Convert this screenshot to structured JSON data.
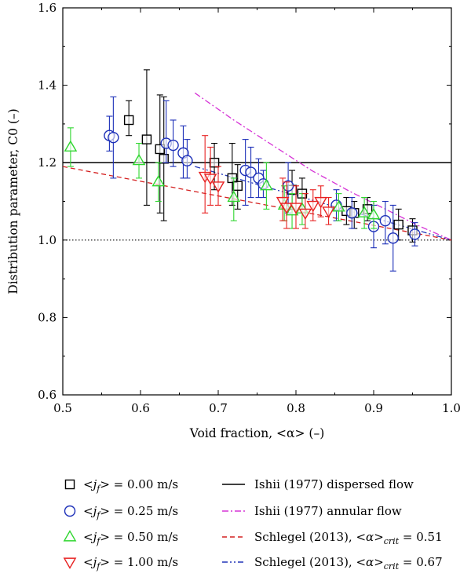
{
  "chart_data": {
    "type": "scatter",
    "xlabel": "Void fraction, <α> (–)",
    "ylabel": "Distribution parameter, C0 (–)",
    "xlim": [
      0.5,
      1.0
    ],
    "ylim": [
      0.6,
      1.6
    ],
    "xticks": [
      "0.5",
      "0.6",
      "0.7",
      "0.8",
      "0.9",
      "1.0"
    ],
    "yticks": [
      "0.6",
      "0.8",
      "1.0",
      "1.2",
      "1.4",
      "1.6"
    ],
    "grid": false,
    "legend_placement": "below",
    "series": [
      {
        "name": "<jf> = 0.00 m/s",
        "name_parts": [
          "<",
          "j",
          "f",
          "> = 0.00 m/s"
        ],
        "marker": "square",
        "color": "#000000",
        "points": [
          {
            "x": 0.585,
            "y": 1.31,
            "lo": 1.27,
            "hi": 1.36
          },
          {
            "x": 0.608,
            "y": 1.26,
            "lo": 1.09,
            "hi": 1.44
          },
          {
            "x": 0.625,
            "y": 1.235,
            "lo": 1.07,
            "hi": 1.375
          },
          {
            "x": 0.63,
            "y": 1.21,
            "lo": 1.05,
            "hi": 1.37
          },
          {
            "x": 0.695,
            "y": 1.2,
            "lo": 1.13,
            "hi": 1.25
          },
          {
            "x": 0.718,
            "y": 1.16,
            "lo": 1.09,
            "hi": 1.25
          },
          {
            "x": 0.725,
            "y": 1.14,
            "lo": 1.08,
            "hi": 1.195
          },
          {
            "x": 0.795,
            "y": 1.13,
            "lo": 1.08,
            "hi": 1.18
          },
          {
            "x": 0.808,
            "y": 1.12,
            "lo": 1.08,
            "hi": 1.16
          },
          {
            "x": 0.865,
            "y": 1.075,
            "lo": 1.04,
            "hi": 1.11
          },
          {
            "x": 0.875,
            "y": 1.07,
            "lo": 1.03,
            "hi": 1.1
          },
          {
            "x": 0.892,
            "y": 1.08,
            "lo": 1.05,
            "hi": 1.11
          },
          {
            "x": 0.932,
            "y": 1.04,
            "lo": 1.0,
            "hi": 1.08
          },
          {
            "x": 0.95,
            "y": 1.025,
            "lo": 0.995,
            "hi": 1.055
          }
        ]
      },
      {
        "name": "<jf> = 0.25 m/s",
        "name_parts": [
          "<",
          "j",
          "f",
          "> = 0.25 m/s"
        ],
        "marker": "circle",
        "color": "#1c2fb8",
        "points": [
          {
            "x": 0.56,
            "y": 1.27,
            "lo": 1.23,
            "hi": 1.32
          },
          {
            "x": 0.565,
            "y": 1.265,
            "lo": 1.16,
            "hi": 1.37
          },
          {
            "x": 0.633,
            "y": 1.25,
            "lo": 1.2,
            "hi": 1.36
          },
          {
            "x": 0.642,
            "y": 1.245,
            "lo": 1.19,
            "hi": 1.31
          },
          {
            "x": 0.655,
            "y": 1.225,
            "lo": 1.16,
            "hi": 1.295
          },
          {
            "x": 0.66,
            "y": 1.205,
            "lo": 1.16,
            "hi": 1.26
          },
          {
            "x": 0.735,
            "y": 1.18,
            "lo": 1.09,
            "hi": 1.26
          },
          {
            "x": 0.742,
            "y": 1.175,
            "lo": 1.11,
            "hi": 1.24
          },
          {
            "x": 0.752,
            "y": 1.16,
            "lo": 1.11,
            "hi": 1.21
          },
          {
            "x": 0.758,
            "y": 1.145,
            "lo": 1.11,
            "hi": 1.18
          },
          {
            "x": 0.79,
            "y": 1.14,
            "lo": 1.07,
            "hi": 1.2
          },
          {
            "x": 0.852,
            "y": 1.09,
            "lo": 1.05,
            "hi": 1.13
          },
          {
            "x": 0.872,
            "y": 1.07,
            "lo": 1.03,
            "hi": 1.11
          },
          {
            "x": 0.9,
            "y": 1.035,
            "lo": 0.98,
            "hi": 1.09
          },
          {
            "x": 0.915,
            "y": 1.05,
            "lo": 0.99,
            "hi": 1.1
          },
          {
            "x": 0.925,
            "y": 1.005,
            "lo": 0.92,
            "hi": 1.09
          },
          {
            "x": 0.953,
            "y": 1.015,
            "lo": 0.985,
            "hi": 1.045
          }
        ]
      },
      {
        "name": "<jf> = 0.50 m/s",
        "name_parts": [
          "<",
          "j",
          "f",
          "> = 0.50 m/s"
        ],
        "marker": "triangle-up",
        "color": "#2fd62f",
        "points": [
          {
            "x": 0.51,
            "y": 1.24,
            "lo": 1.19,
            "hi": 1.29
          },
          {
            "x": 0.598,
            "y": 1.205,
            "lo": 1.16,
            "hi": 1.25
          },
          {
            "x": 0.623,
            "y": 1.15,
            "lo": 1.1,
            "hi": 1.2
          },
          {
            "x": 0.72,
            "y": 1.11,
            "lo": 1.05,
            "hi": 1.16
          },
          {
            "x": 0.762,
            "y": 1.14,
            "lo": 1.08,
            "hi": 1.2
          },
          {
            "x": 0.785,
            "y": 1.09,
            "lo": 1.05,
            "hi": 1.14
          },
          {
            "x": 0.795,
            "y": 1.075,
            "lo": 1.03,
            "hi": 1.12
          },
          {
            "x": 0.808,
            "y": 1.08,
            "lo": 1.04,
            "hi": 1.12
          },
          {
            "x": 0.855,
            "y": 1.085,
            "lo": 1.05,
            "hi": 1.12
          },
          {
            "x": 0.888,
            "y": 1.07,
            "lo": 1.03,
            "hi": 1.11
          },
          {
            "x": 0.9,
            "y": 1.065,
            "lo": 1.03,
            "hi": 1.1
          }
        ]
      },
      {
        "name": "<jf> = 1.00 m/s",
        "name_parts": [
          "<",
          "j",
          "f",
          "> = 1.00 m/s"
        ],
        "marker": "triangle-down",
        "color": "#e82020",
        "points": [
          {
            "x": 0.683,
            "y": 1.165,
            "lo": 1.07,
            "hi": 1.27
          },
          {
            "x": 0.69,
            "y": 1.16,
            "lo": 1.09,
            "hi": 1.24
          },
          {
            "x": 0.7,
            "y": 1.14,
            "lo": 1.09,
            "hi": 1.19
          },
          {
            "x": 0.783,
            "y": 1.1,
            "lo": 1.05,
            "hi": 1.16
          },
          {
            "x": 0.788,
            "y": 1.085,
            "lo": 1.03,
            "hi": 1.15
          },
          {
            "x": 0.8,
            "y": 1.085,
            "lo": 1.03,
            "hi": 1.14
          },
          {
            "x": 0.812,
            "y": 1.07,
            "lo": 1.03,
            "hi": 1.12
          },
          {
            "x": 0.822,
            "y": 1.09,
            "lo": 1.05,
            "hi": 1.13
          },
          {
            "x": 0.832,
            "y": 1.1,
            "lo": 1.06,
            "hi": 1.14
          },
          {
            "x": 0.842,
            "y": 1.075,
            "lo": 1.04,
            "hi": 1.11
          }
        ]
      }
    ],
    "lines": [
      {
        "name": "Ishii (1977) dispersed flow",
        "name_parts": [
          "Ishii (1977) dispersed flow"
        ],
        "style": "solid",
        "color": "#000000",
        "x": [
          0.5,
          1.0
        ],
        "y": [
          1.2,
          1.2
        ]
      },
      {
        "name": "Ishii (1977) annular flow",
        "name_parts": [
          "Ishii (1977) annular flow"
        ],
        "style": "dashdot",
        "color": "#d633d6",
        "x": [
          0.67,
          0.72,
          0.77,
          0.82,
          0.87,
          0.92,
          0.96,
          1.0
        ],
        "y": [
          1.38,
          1.31,
          1.245,
          1.18,
          1.125,
          1.075,
          1.035,
          1.0
        ]
      },
      {
        "name": "Schlegel (2013), <α>crit = 0.51",
        "name_parts": [
          "Schlegel (2013), <",
          "α",
          ">",
          "crit",
          " = 0.51"
        ],
        "style": "dashed",
        "color": "#d42020",
        "x": [
          0.5,
          1.0
        ],
        "y": [
          1.19,
          1.0
        ]
      },
      {
        "name": "Schlegel (2013), <α>crit = 0.67",
        "name_parts": [
          "Schlegel (2013), <",
          "α",
          ">",
          "crit",
          " = 0.67"
        ],
        "style": "dashdotdot",
        "color": "#2035b8",
        "x": [
          0.67,
          1.0
        ],
        "y": [
          1.19,
          1.0
        ]
      }
    ],
    "reference_lines": [
      {
        "style": "dotted",
        "color": "#000000",
        "x": [
          0.5,
          1.0
        ],
        "y": [
          1.0,
          1.0
        ]
      }
    ]
  }
}
